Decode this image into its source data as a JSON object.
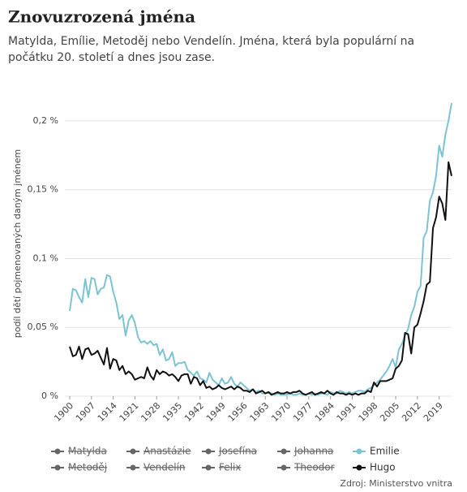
{
  "chart_data": {
    "type": "line",
    "title": "Znovuzrozená jména",
    "subtitle_lines": [
      "Matylda, Emílie, Metoděj nebo Vendelín. Jména, která byla populární na",
      "počátku 20. století a dnes jsou zase."
    ],
    "y_label": "podíl dětí pojmenovaných daným jménem",
    "source": "Zdroj: Ministerstvo vnitra",
    "x": [
      1900,
      1901,
      1902,
      1903,
      1904,
      1905,
      1906,
      1907,
      1908,
      1909,
      1910,
      1911,
      1912,
      1913,
      1914,
      1915,
      1916,
      1917,
      1918,
      1919,
      1920,
      1921,
      1922,
      1923,
      1924,
      1925,
      1926,
      1927,
      1928,
      1929,
      1930,
      1931,
      1932,
      1933,
      1934,
      1935,
      1936,
      1937,
      1938,
      1939,
      1940,
      1941,
      1942,
      1943,
      1944,
      1945,
      1946,
      1947,
      1948,
      1949,
      1950,
      1951,
      1952,
      1953,
      1954,
      1955,
      1956,
      1957,
      1958,
      1959,
      1960,
      1961,
      1962,
      1963,
      1964,
      1965,
      1966,
      1967,
      1968,
      1969,
      1970,
      1971,
      1972,
      1973,
      1974,
      1975,
      1976,
      1977,
      1978,
      1979,
      1980,
      1981,
      1982,
      1983,
      1984,
      1985,
      1986,
      1987,
      1988,
      1989,
      1990,
      1991,
      1992,
      1993,
      1994,
      1995,
      1996,
      1997,
      1998,
      1999,
      2000,
      2001,
      2002,
      2003,
      2004,
      2005,
      2006,
      2007,
      2008,
      2009,
      2010,
      2011,
      2012,
      2013,
      2014,
      2015,
      2016,
      2017,
      2018,
      2019,
      2020,
      2021,
      2022,
      2023
    ],
    "xlim": [
      1900,
      2023
    ],
    "xticks": [
      1900,
      1907,
      1914,
      1921,
      1928,
      1935,
      1942,
      1949,
      1956,
      1963,
      1970,
      1977,
      1984,
      1991,
      1998,
      2005,
      2012,
      2019
    ],
    "ylim": [
      0,
      0.22
    ],
    "yticks": [
      {
        "value": 0,
        "label": "0 %"
      },
      {
        "value": 0.05,
        "label": "0,05 %"
      },
      {
        "value": 0.1,
        "label": "0,1 %"
      },
      {
        "value": 0.15,
        "label": "0,15 %"
      },
      {
        "value": 0.2,
        "label": "0,2 %"
      }
    ],
    "grid": true,
    "series": [
      {
        "name": "Matylda",
        "color": "#666666",
        "visible": false
      },
      {
        "name": "Anastázie",
        "color": "#666666",
        "visible": false
      },
      {
        "name": "Josefína",
        "color": "#666666",
        "visible": false
      },
      {
        "name": "Johanna",
        "color": "#666666",
        "visible": false
      },
      {
        "name": "Emilie",
        "color": "#7cc3d4",
        "visible": true,
        "values": [
          0.062,
          0.078,
          0.077,
          0.072,
          0.068,
          0.085,
          0.072,
          0.086,
          0.085,
          0.074,
          0.078,
          0.079,
          0.088,
          0.087,
          0.076,
          0.068,
          0.056,
          0.059,
          0.044,
          0.055,
          0.059,
          0.053,
          0.043,
          0.039,
          0.04,
          0.038,
          0.04,
          0.037,
          0.038,
          0.03,
          0.034,
          0.026,
          0.027,
          0.032,
          0.022,
          0.024,
          0.024,
          0.025,
          0.019,
          0.017,
          0.015,
          0.018,
          0.013,
          0.012,
          0.01,
          0.017,
          0.012,
          0.01,
          0.008,
          0.013,
          0.009,
          0.01,
          0.014,
          0.009,
          0.007,
          0.01,
          0.008,
          0.006,
          0.004,
          0.005,
          0.003,
          0.004,
          0.002,
          0.002,
          0.003,
          0.002,
          0.001,
          0.002,
          0.001,
          0.001,
          0.001,
          0.002,
          0.001,
          0.001,
          0.002,
          0.001,
          0.001,
          0.002,
          0.001,
          0.002,
          0.001,
          0.002,
          0.002,
          0.001,
          0.003,
          0.002,
          0.002,
          0.004,
          0.003,
          0.002,
          0.003,
          0.002,
          0.003,
          0.004,
          0.004,
          0.003,
          0.005,
          0.006,
          0.008,
          0.01,
          0.012,
          0.015,
          0.018,
          0.022,
          0.027,
          0.021,
          0.034,
          0.038,
          0.044,
          0.049,
          0.059,
          0.065,
          0.076,
          0.08,
          0.115,
          0.12,
          0.142,
          0.148,
          0.16,
          0.182,
          0.174,
          0.19,
          0.2,
          0.213
        ]
      },
      {
        "name": "Metoděj",
        "color": "#666666",
        "visible": false
      },
      {
        "name": "Vendelín",
        "color": "#666666",
        "visible": false
      },
      {
        "name": "Felix",
        "color": "#666666",
        "visible": false
      },
      {
        "name": "Theodor",
        "color": "#666666",
        "visible": false
      },
      {
        "name": "Hugo",
        "color": "#111111",
        "visible": true,
        "values": [
          0.036,
          0.029,
          0.03,
          0.036,
          0.027,
          0.034,
          0.035,
          0.03,
          0.031,
          0.033,
          0.028,
          0.023,
          0.035,
          0.02,
          0.027,
          0.026,
          0.019,
          0.022,
          0.016,
          0.018,
          0.016,
          0.012,
          0.013,
          0.014,
          0.013,
          0.021,
          0.015,
          0.012,
          0.019,
          0.016,
          0.018,
          0.017,
          0.015,
          0.016,
          0.014,
          0.011,
          0.015,
          0.016,
          0.016,
          0.009,
          0.014,
          0.013,
          0.008,
          0.011,
          0.006,
          0.007,
          0.005,
          0.006,
          0.008,
          0.006,
          0.005,
          0.006,
          0.007,
          0.005,
          0.007,
          0.006,
          0.004,
          0.004,
          0.003,
          0.005,
          0.002,
          0.003,
          0.004,
          0.002,
          0.003,
          0.001,
          0.002,
          0.003,
          0.002,
          0.002,
          0.003,
          0.002,
          0.003,
          0.003,
          0.004,
          0.002,
          0.001,
          0.002,
          0.003,
          0.001,
          0.002,
          0.003,
          0.002,
          0.004,
          0.002,
          0.001,
          0.003,
          0.002,
          0.002,
          0.001,
          0.002,
          0.001,
          0.002,
          0.001,
          0.002,
          0.002,
          0.004,
          0.003,
          0.01,
          0.007,
          0.011,
          0.011,
          0.011,
          0.012,
          0.013,
          0.02,
          0.022,
          0.026,
          0.046,
          0.045,
          0.031,
          0.05,
          0.052,
          0.06,
          0.069,
          0.081,
          0.083,
          0.122,
          0.13,
          0.145,
          0.14,
          0.128,
          0.17,
          0.16
        ]
      }
    ]
  }
}
